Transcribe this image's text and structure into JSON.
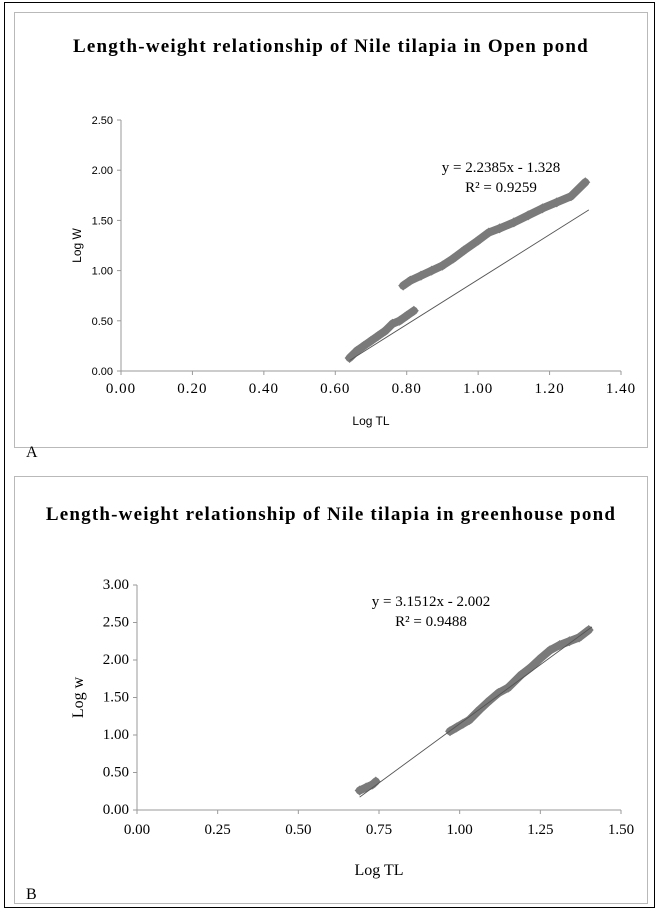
{
  "chart_data": [
    {
      "type": "scatter",
      "panel_label": "A",
      "title": "Length-weight relationship of Nile tilapia in Open pond",
      "xlabel": "Log TL",
      "ylabel": "Log W",
      "xlim": [
        0,
        1.4
      ],
      "ylim": [
        0,
        2.5
      ],
      "xticks": [
        "0.00",
        "0.20",
        "0.40",
        "0.60",
        "0.80",
        "1.00",
        "1.20",
        "1.40"
      ],
      "yticks": [
        "0.00",
        "0.50",
        "1.00",
        "1.50",
        "2.00",
        "2.50"
      ],
      "x_tick_values": [
        0,
        0.2,
        0.4,
        0.6,
        0.8,
        1.0,
        1.2,
        1.4
      ],
      "y_tick_values": [
        0,
        0.5,
        1.0,
        1.5,
        2.0,
        2.5
      ],
      "grid": false,
      "marker_color": "#7a7a7a",
      "trendline": {
        "slope": 2.2385,
        "intercept": -1.328,
        "x_range": [
          0.64,
          1.31
        ]
      },
      "equation": "y = 2.2385x - 1.328",
      "r_squared": "R² = 0.9259",
      "points": [
        [
          0.64,
          0.13
        ],
        [
          0.66,
          0.2
        ],
        [
          0.68,
          0.25
        ],
        [
          0.7,
          0.3
        ],
        [
          0.72,
          0.35
        ],
        [
          0.74,
          0.4
        ],
        [
          0.76,
          0.47
        ],
        [
          0.78,
          0.5
        ],
        [
          0.8,
          0.55
        ],
        [
          0.82,
          0.6
        ],
        [
          0.79,
          0.85
        ],
        [
          0.81,
          0.9
        ],
        [
          0.84,
          0.95
        ],
        [
          0.87,
          1.0
        ],
        [
          0.9,
          1.05
        ],
        [
          0.93,
          1.12
        ],
        [
          0.96,
          1.2
        ],
        [
          1.0,
          1.3
        ],
        [
          1.03,
          1.38
        ],
        [
          1.06,
          1.42
        ],
        [
          1.1,
          1.48
        ],
        [
          1.14,
          1.55
        ],
        [
          1.18,
          1.62
        ],
        [
          1.22,
          1.68
        ],
        [
          1.26,
          1.74
        ],
        [
          1.3,
          1.88
        ]
      ]
    },
    {
      "type": "scatter",
      "panel_label": "B",
      "title": "Length-weight relationship of Nile tilapia in greenhouse pond",
      "xlabel": "Log TL",
      "ylabel": "Log w",
      "xlim": [
        0,
        1.5
      ],
      "ylim": [
        0,
        3.0
      ],
      "xticks": [
        "0.00",
        "0.25",
        "0.50",
        "0.75",
        "1.00",
        "1.25",
        "1.50"
      ],
      "yticks": [
        "0.00",
        "0.50",
        "1.00",
        "1.50",
        "2.00",
        "2.50",
        "3.00"
      ],
      "x_tick_values": [
        0,
        0.25,
        0.5,
        0.75,
        1.0,
        1.25,
        1.5
      ],
      "y_tick_values": [
        0,
        0.5,
        1.0,
        1.5,
        2.0,
        2.5,
        3.0
      ],
      "grid": false,
      "marker_color": "#7a7a7a",
      "trendline": {
        "slope": 3.1512,
        "intercept": -2.002,
        "x_range": [
          0.69,
          1.41
        ]
      },
      "equation": "y = 3.1512x - 2.002",
      "r_squared": "R² = 0.9488",
      "points": [
        [
          0.69,
          0.26
        ],
        [
          0.71,
          0.3
        ],
        [
          0.73,
          0.34
        ],
        [
          0.74,
          0.38
        ],
        [
          0.97,
          1.05
        ],
        [
          0.99,
          1.1
        ],
        [
          1.01,
          1.15
        ],
        [
          1.03,
          1.2
        ],
        [
          1.06,
          1.33
        ],
        [
          1.09,
          1.45
        ],
        [
          1.12,
          1.56
        ],
        [
          1.15,
          1.63
        ],
        [
          1.19,
          1.8
        ],
        [
          1.22,
          1.9
        ],
        [
          1.25,
          2.02
        ],
        [
          1.28,
          2.13
        ],
        [
          1.31,
          2.2
        ],
        [
          1.34,
          2.25
        ],
        [
          1.37,
          2.3
        ],
        [
          1.4,
          2.4
        ]
      ]
    }
  ]
}
